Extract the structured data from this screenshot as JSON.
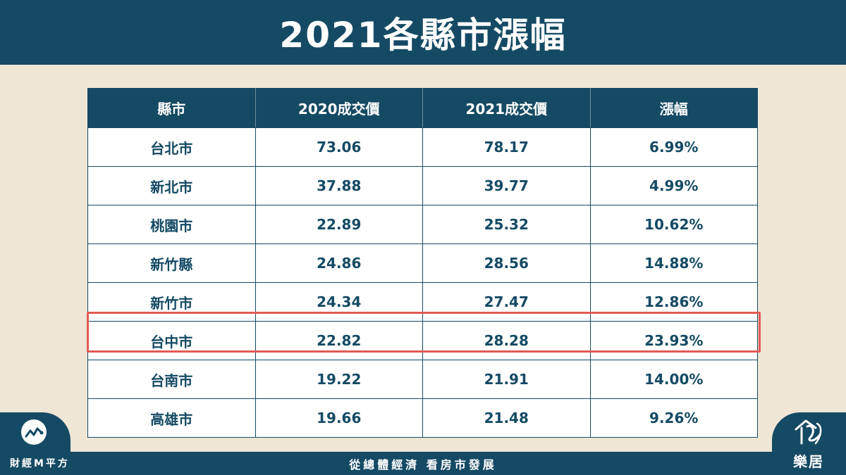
{
  "title": "2021各縣市漲幅",
  "table": {
    "headers": [
      "縣市",
      "2020成交價",
      "2021成交價",
      "漲幅"
    ],
    "rows": [
      [
        "台北市",
        "73.06",
        "78.17",
        "6.99%"
      ],
      [
        "新北市",
        "37.88",
        "39.77",
        "4.99%"
      ],
      [
        "桃園市",
        "22.89",
        "25.32",
        "10.62%"
      ],
      [
        "新竹縣",
        "24.86",
        "28.56",
        "14.88%"
      ],
      [
        "新竹市",
        "24.34",
        "27.47",
        "12.86%"
      ],
      [
        "台中市",
        "22.82",
        "28.28",
        "23.93%"
      ],
      [
        "台南市",
        "19.22",
        "21.91",
        "14.00%"
      ],
      [
        "高雄市",
        "19.66",
        "21.48",
        "9.26%"
      ]
    ],
    "highlighted_row": "台中市"
  },
  "footer": {
    "slogan": "從總體經濟 看房市發展",
    "brand_left": "財經M平方",
    "brand_right": "樂居"
  },
  "colors": {
    "primary": "#154a64",
    "background": "#efe6d6",
    "highlight": "#e25a55"
  },
  "icons": {
    "left_logo": "trend-chart-icon",
    "right_logo": "house-signature-icon"
  }
}
